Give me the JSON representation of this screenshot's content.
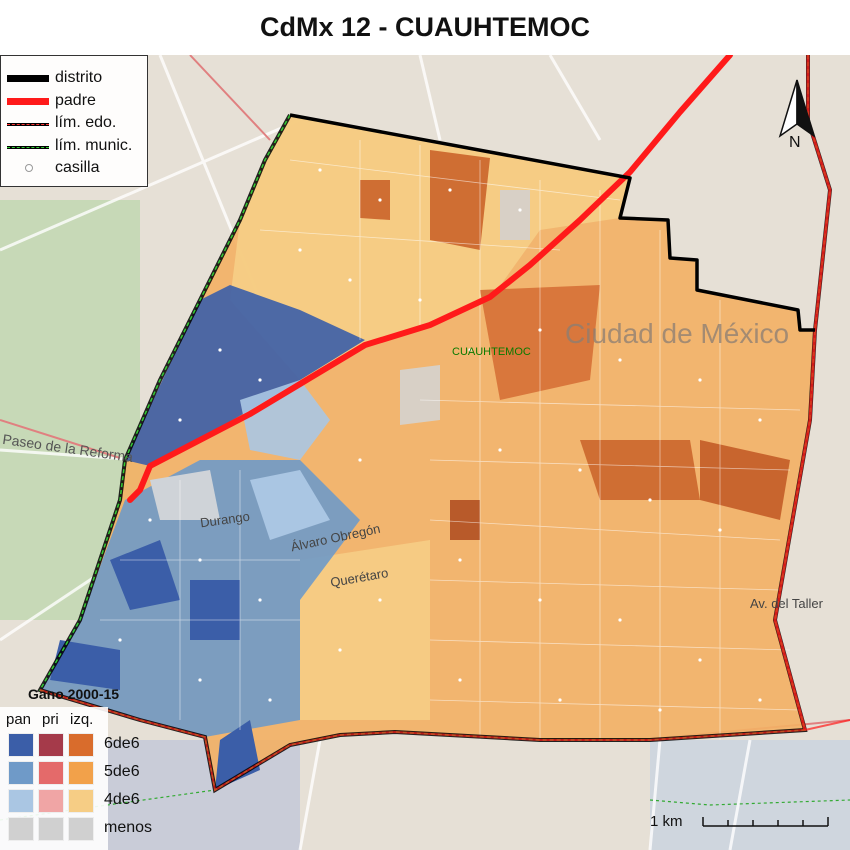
{
  "title": "CdMx 12 - CUAUHTEMOC",
  "municipality_label": "CUAUHTEMOC",
  "legend_lines": [
    {
      "label": "distrito",
      "color": "#000000",
      "style": "thick-solid"
    },
    {
      "label": "padre",
      "color": "#ff1a1a",
      "style": "thick-solid"
    },
    {
      "label": "lím. edo.",
      "color": "#000000",
      "accent": "#ff3333",
      "style": "dashed"
    },
    {
      "label": "lím. munic.",
      "color": "#000000",
      "accent": "#33cc33",
      "style": "dashed"
    },
    {
      "label": "casilla",
      "color": "#999999",
      "style": "point"
    }
  ],
  "win_legend": {
    "title": "Gano 2000-15",
    "columns": [
      "pan",
      "pri",
      "izq."
    ],
    "rows": [
      {
        "label": "6de6",
        "colors": [
          "#3b5ea8",
          "#a53a4a",
          "#d96c2c"
        ]
      },
      {
        "label": "5de6",
        "colors": [
          "#6f9ac8",
          "#e46a6a",
          "#f2a14a"
        ]
      },
      {
        "label": "4de6",
        "colors": [
          "#aac6e3",
          "#f0a5a5",
          "#f6cd85"
        ]
      },
      {
        "label": "menos",
        "colors": [
          "#d0d0d0",
          "#d0d0d0",
          "#d0d0d0"
        ]
      }
    ]
  },
  "scale_label": "1 km",
  "north_label": "N",
  "map_place_labels": [
    "Ciudad de México",
    "Paseo de la Reforma",
    "Durango",
    "Álvaro Obregón",
    "Querétaro",
    "Av. del Taller"
  ]
}
